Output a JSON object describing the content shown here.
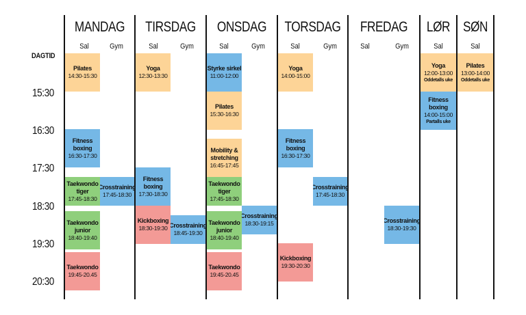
{
  "header": {
    "days": [
      "MANDAG",
      "TIRSDAG",
      "ONSDAG",
      "TORSDAG",
      "FREDAG",
      "LØR",
      "SØN"
    ],
    "sub": {
      "sal": "Sal",
      "gym": "Gym"
    },
    "dagtid": "DAGTID"
  },
  "times": [
    "15:30",
    "16:30",
    "17:30",
    "18:30",
    "19:30",
    "20:30"
  ],
  "events": {
    "man_pilates": {
      "title": "Pilates",
      "time": "14:30-15:30"
    },
    "man_fitness": {
      "title": "Fitness boxing",
      "time": "16:30-17:30"
    },
    "man_tkd_tiger": {
      "title": "Taekwondo tiger",
      "time": "17:45-18:30"
    },
    "man_tkd_junior": {
      "title": "Taekwondo junior",
      "time": "18:40-19:40"
    },
    "man_tkd": {
      "title": "Taekwondo",
      "time": "19:45-20.45"
    },
    "man_cross": {
      "title": "Crosstraining",
      "time": "17:45-18:30"
    },
    "tir_yoga": {
      "title": "Yoga",
      "time": "12:30-13:30"
    },
    "tir_fitness": {
      "title": "Fitness boxing",
      "time": "17:30-18:30"
    },
    "tir_kick": {
      "title": "Kickboxing",
      "time": "18:30-19:30"
    },
    "tir_cross": {
      "title": "Crosstraining",
      "time": "18:45-19:30"
    },
    "ons_styrke": {
      "title": "Styrke sirkel",
      "time": "11:00-12:00"
    },
    "ons_pilates": {
      "title": "Pilates",
      "time": "15:30-16:30"
    },
    "ons_mobility": {
      "title": "Mobility & stretching",
      "time": "16:45-17:45"
    },
    "ons_tkd_tiger": {
      "title": "Taekwondo tiger",
      "time": "17:45-18:30"
    },
    "ons_tkd_junior": {
      "title": "Taekwondo junior",
      "time": "18:40-19:40"
    },
    "ons_tkd": {
      "title": "Taekwondo",
      "time": "19:45-20.45"
    },
    "ons_cross": {
      "title": "Crosstraining",
      "time": "18:30-19:15"
    },
    "tor_yoga": {
      "title": "Yoga",
      "time": "14:00-15:00"
    },
    "tor_fitness": {
      "title": "Fitness boxing",
      "time": "16:30-17:30"
    },
    "tor_kick": {
      "title": "Kickboxing",
      "time": "19:30-20:30"
    },
    "tor_cross": {
      "title": "Crosstraining",
      "time": "17:45-18:30"
    },
    "fre_cross": {
      "title": "Crosstraining",
      "time": "18:30-19:30"
    },
    "lor_yoga": {
      "title": "Yoga",
      "time": "12:00-13:00",
      "note": "Oddetalls uke"
    },
    "lor_fitness": {
      "title": "Fitness boxing",
      "time": "14:00-15:00",
      "note": "Partalls uke"
    },
    "son_pilates": {
      "title": "Pilates",
      "time": "13:00-14:00",
      "note": "Oddetalls uke"
    }
  },
  "colors": {
    "orange": "#fdd497",
    "blue": "#75b8e6",
    "green": "#8fcf7c",
    "red": "#f39a96"
  }
}
